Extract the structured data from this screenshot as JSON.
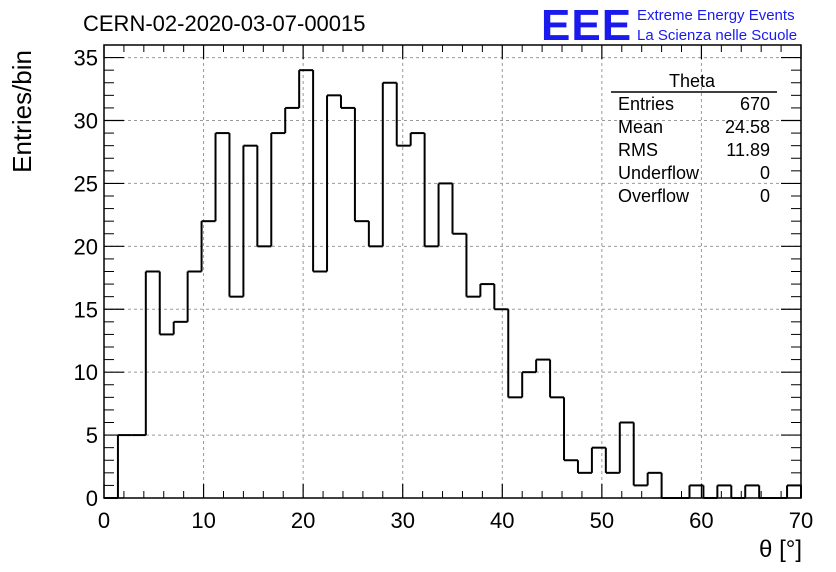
{
  "header": {
    "title": "CERN-02-2020-03-07-00015",
    "logo_text": "EEE",
    "logo_line1": "Extreme Energy Events",
    "logo_line2": "La Scienza nelle Scuole",
    "logo_color": "#1a1aef"
  },
  "stats_box": {
    "title": "Theta",
    "rows": [
      {
        "label": "Entries",
        "value": "670"
      },
      {
        "label": "Mean",
        "value": "24.58"
      },
      {
        "label": "RMS",
        "value": "11.89"
      },
      {
        "label": "Underflow",
        "value": "0"
      },
      {
        "label": "Overflow",
        "value": "0"
      }
    ]
  },
  "chart_data": {
    "type": "bar",
    "style": "step-histogram",
    "title": "CERN-02-2020-03-07-00015",
    "xlabel": "θ [°]",
    "ylabel": "Entries/bin",
    "xlim": [
      0,
      70
    ],
    "ylim": [
      0,
      36
    ],
    "grid": true,
    "bin_edges_start": 0,
    "bin_width": 1.4,
    "x_ticks": [
      0,
      10,
      20,
      30,
      40,
      50,
      60,
      70
    ],
    "y_ticks": [
      0,
      5,
      10,
      15,
      20,
      25,
      30,
      35
    ],
    "values": [
      0,
      5,
      5,
      18,
      13,
      14,
      18,
      22,
      29,
      16,
      28,
      20,
      29,
      31,
      34,
      18,
      32,
      31,
      22,
      20,
      33,
      28,
      29,
      20,
      25,
      21,
      16,
      17,
      15,
      8,
      10,
      11,
      8,
      3,
      2,
      4,
      2,
      6,
      1,
      2,
      0,
      0,
      1,
      0,
      1,
      0,
      1,
      0,
      0,
      1
    ]
  }
}
